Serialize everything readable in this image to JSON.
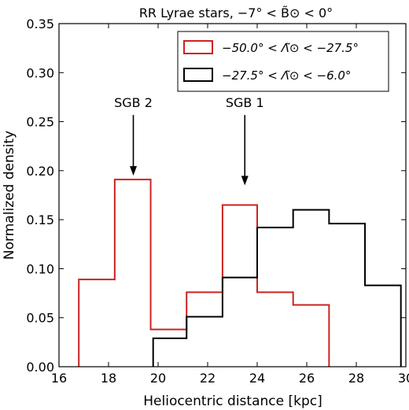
{
  "chart_data": {
    "type": "histogram",
    "title": "RR Lyrae stars, −7° < B̃⊙ < 0°",
    "xlabel": "Heliocentric distance [kpc]",
    "ylabel": "Normalized density",
    "xlim": [
      16,
      30
    ],
    "ylim": [
      0,
      0.35
    ],
    "xticks": [
      "16",
      "18",
      "20",
      "22",
      "24",
      "26",
      "28",
      "30"
    ],
    "yticks": [
      "0.00",
      "0.05",
      "0.10",
      "0.15",
      "0.20",
      "0.25",
      "0.30",
      "0.35"
    ],
    "grid": false,
    "legend_position": "top-right",
    "series": [
      {
        "name": "−50.0° < Λ̃⊙ < −27.5°",
        "color": "#cc2222",
        "bin_edges": [
          16.8,
          18.25,
          19.7,
          21.15,
          22.6,
          24.0,
          25.45,
          26.9
        ],
        "values": [
          0.089,
          0.191,
          0.038,
          0.076,
          0.165,
          0.076,
          0.063
        ]
      },
      {
        "name": "−27.5° < Λ̃⊙ < −6.0°",
        "color": "#000000",
        "bin_edges": [
          19.8,
          21.15,
          22.6,
          24.0,
          25.45,
          26.9,
          28.35,
          29.8
        ],
        "values": [
          0.029,
          0.051,
          0.091,
          0.142,
          0.16,
          0.146,
          0.083
        ]
      }
    ],
    "annotations": [
      {
        "text": "SGB 2",
        "x": 19.0,
        "y_text": 0.26,
        "y_arrow_tip": 0.195
      },
      {
        "text": "SGB 1",
        "x": 23.5,
        "y_text": 0.26,
        "y_arrow_tip": 0.185
      }
    ]
  }
}
